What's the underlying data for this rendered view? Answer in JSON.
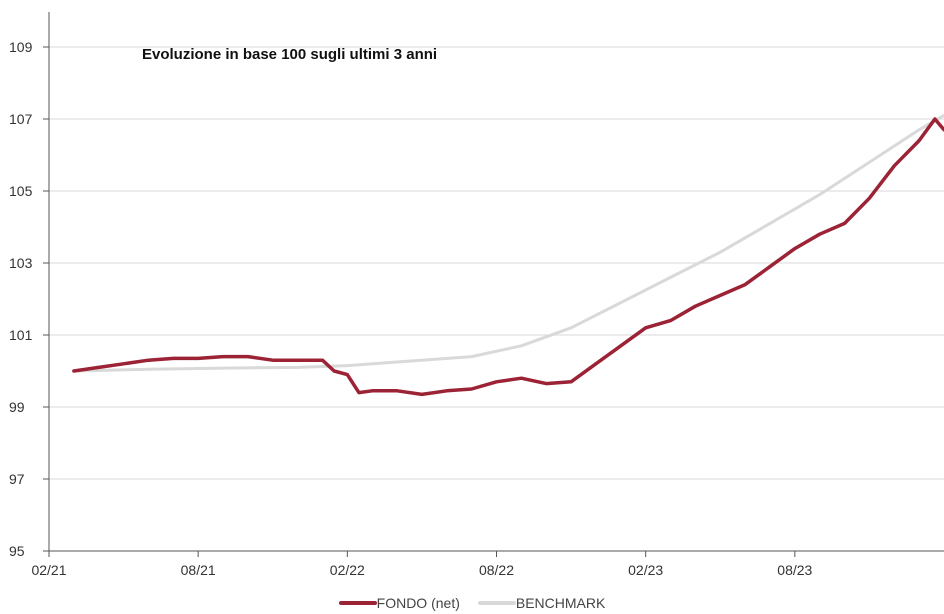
{
  "chart_data": {
    "type": "line",
    "title": "Evoluzione in base 100 sugli ultimi 3 anni",
    "xlabel": "",
    "ylabel": "",
    "x_ticks": [
      "02/21",
      "08/21",
      "02/22",
      "08/22",
      "02/23",
      "08/23"
    ],
    "x_range": [
      "2021-02",
      "2024-02"
    ],
    "y_ticks": [
      95,
      97,
      99,
      101,
      103,
      105,
      107,
      109
    ],
    "ylim": [
      95,
      110
    ],
    "grid": "horizontal",
    "legend_position": "bottom",
    "series": [
      {
        "name": "FONDO (net)",
        "color": "#9b2335",
        "points": [
          [
            "2021-03",
            100.0
          ],
          [
            "2021-04",
            100.1
          ],
          [
            "2021-05",
            100.2
          ],
          [
            "2021-06",
            100.3
          ],
          [
            "2021-07",
            100.35
          ],
          [
            "2021-08",
            100.35
          ],
          [
            "2021-09",
            100.4
          ],
          [
            "2021-10",
            100.4
          ],
          [
            "2021-11",
            100.3
          ],
          [
            "2021-12",
            100.3
          ],
          [
            "2022-01",
            100.3
          ],
          [
            "2022-01-15",
            100.0
          ],
          [
            "2022-02",
            99.9
          ],
          [
            "2022-02-15",
            99.4
          ],
          [
            "2022-03",
            99.45
          ],
          [
            "2022-04",
            99.45
          ],
          [
            "2022-05",
            99.35
          ],
          [
            "2022-06",
            99.45
          ],
          [
            "2022-07",
            99.5
          ],
          [
            "2022-08",
            99.7
          ],
          [
            "2022-09",
            99.8
          ],
          [
            "2022-10",
            99.65
          ],
          [
            "2022-11",
            99.7
          ],
          [
            "2022-12",
            100.2
          ],
          [
            "2023-01",
            100.7
          ],
          [
            "2023-02",
            101.2
          ],
          [
            "2023-03",
            101.4
          ],
          [
            "2023-04",
            101.8
          ],
          [
            "2023-05",
            102.1
          ],
          [
            "2023-06",
            102.4
          ],
          [
            "2023-07",
            102.9
          ],
          [
            "2023-08",
            103.4
          ],
          [
            "2023-09",
            103.8
          ],
          [
            "2023-10",
            104.1
          ],
          [
            "2023-11",
            104.8
          ],
          [
            "2023-12",
            105.7
          ],
          [
            "2024-01",
            106.4
          ],
          [
            "2024-01-20",
            107.0
          ],
          [
            "2024-02",
            106.7
          ]
        ]
      },
      {
        "name": "BENCHMARK",
        "color": "#d9d9d9",
        "points": [
          [
            "2021-03",
            100.0
          ],
          [
            "2021-06",
            100.05
          ],
          [
            "2021-09",
            100.08
          ],
          [
            "2021-12",
            100.1
          ],
          [
            "2022-02",
            100.15
          ],
          [
            "2022-05",
            100.3
          ],
          [
            "2022-07",
            100.4
          ],
          [
            "2022-09",
            100.7
          ],
          [
            "2022-11",
            101.2
          ],
          [
            "2023-01",
            101.9
          ],
          [
            "2023-03",
            102.6
          ],
          [
            "2023-05",
            103.3
          ],
          [
            "2023-07",
            104.1
          ],
          [
            "2023-09",
            104.9
          ],
          [
            "2023-11",
            105.8
          ],
          [
            "2024-01",
            106.7
          ],
          [
            "2024-02",
            107.1
          ]
        ]
      }
    ]
  }
}
